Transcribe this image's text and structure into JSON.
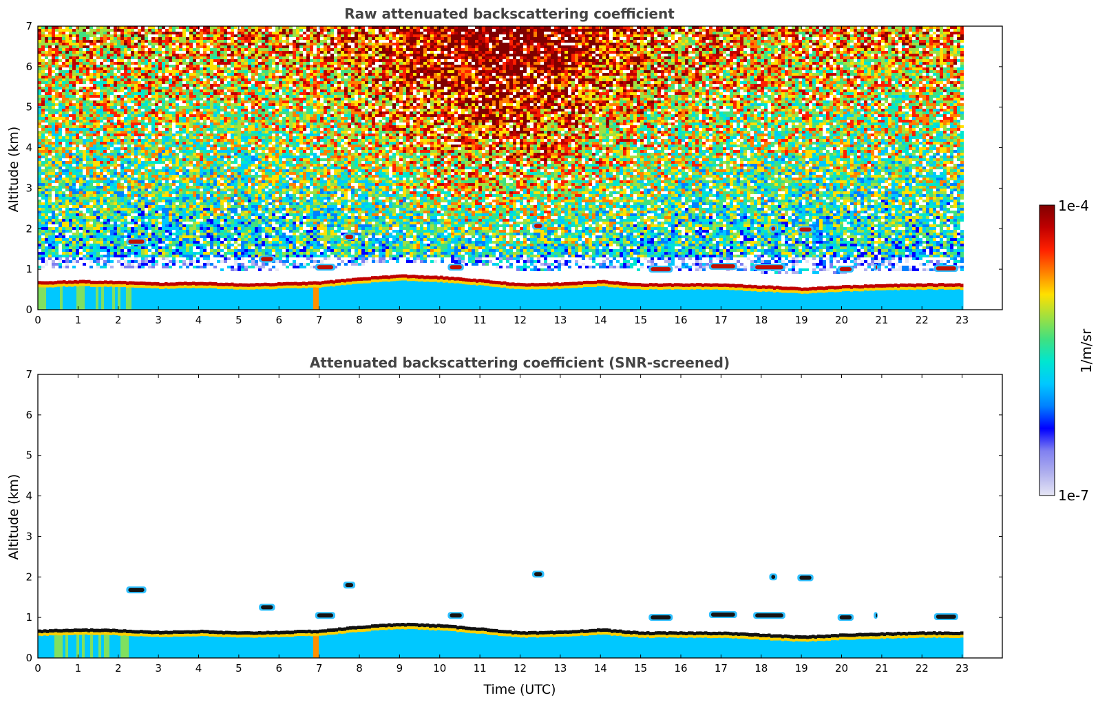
{
  "chart_data": [
    {
      "type": "heatmap",
      "title": "Raw attenuated backscattering coefficient",
      "ylabel": "Altitude (km)",
      "xlabel": "",
      "xlim": [
        0,
        24
      ],
      "ylim": [
        0,
        7
      ],
      "x_ticks": [
        0,
        1,
        2,
        3,
        4,
        5,
        6,
        7,
        8,
        9,
        10,
        11,
        12,
        13,
        14,
        15,
        16,
        17,
        18,
        19,
        20,
        21,
        22,
        23
      ],
      "y_ticks": [
        0,
        1,
        2,
        3,
        4,
        5,
        6,
        7
      ],
      "data_extent_hours": [
        0,
        23
      ],
      "boundary_layer_top_km": [
        [
          0,
          0.65
        ],
        [
          1,
          0.68
        ],
        [
          2,
          0.66
        ],
        [
          3,
          0.62
        ],
        [
          4,
          0.64
        ],
        [
          5,
          0.6
        ],
        [
          6,
          0.62
        ],
        [
          7,
          0.65
        ],
        [
          8,
          0.75
        ],
        [
          9,
          0.82
        ],
        [
          10,
          0.78
        ],
        [
          11,
          0.7
        ],
        [
          12,
          0.6
        ],
        [
          13,
          0.62
        ],
        [
          14,
          0.68
        ],
        [
          15,
          0.6
        ],
        [
          16,
          0.6
        ],
        [
          17,
          0.6
        ],
        [
          18,
          0.55
        ],
        [
          19,
          0.5
        ],
        [
          20,
          0.55
        ],
        [
          21,
          0.58
        ],
        [
          22,
          0.6
        ],
        [
          23,
          0.6
        ]
      ],
      "elevated_layers": [
        {
          "t": [
            2.2,
            2.7
          ],
          "alt_km": 1.68
        },
        {
          "t": [
            5.5,
            5.9
          ],
          "alt_km": 1.25
        },
        {
          "t": [
            6.9,
            7.4
          ],
          "alt_km": 1.05
        },
        {
          "t": [
            7.6,
            7.9
          ],
          "alt_km": 1.8
        },
        {
          "t": [
            10.2,
            10.6
          ],
          "alt_km": 1.05
        },
        {
          "t": [
            12.3,
            12.6
          ],
          "alt_km": 2.07
        },
        {
          "t": [
            15.2,
            15.8
          ],
          "alt_km": 1.0
        },
        {
          "t": [
            16.7,
            17.4
          ],
          "alt_km": 1.07
        },
        {
          "t": [
            17.8,
            18.6
          ],
          "alt_km": 1.05
        },
        {
          "t": [
            18.2,
            18.4
          ],
          "alt_km": 2.0
        },
        {
          "t": [
            18.9,
            19.3
          ],
          "alt_km": 1.98
        },
        {
          "t": [
            19.9,
            20.3
          ],
          "alt_km": 1.0
        },
        {
          "t": [
            20.8,
            20.9
          ],
          "alt_km": 1.05
        },
        {
          "t": [
            22.3,
            22.9
          ],
          "alt_km": 1.02
        }
      ]
    },
    {
      "type": "heatmap",
      "title": "Attenuated backscattering coefficient (SNR-screened)",
      "ylabel": "Altitude (km)",
      "xlabel": "Time (UTC)",
      "xlim": [
        0,
        24
      ],
      "ylim": [
        0,
        7
      ],
      "x_ticks": [
        0,
        1,
        2,
        3,
        4,
        5,
        6,
        7,
        8,
        9,
        10,
        11,
        12,
        13,
        14,
        15,
        16,
        17,
        18,
        19,
        20,
        21,
        22,
        23
      ],
      "y_ticks": [
        0,
        1,
        2,
        3,
        4,
        5,
        6,
        7
      ],
      "data_extent_hours": [
        0,
        23
      ]
    }
  ],
  "colorbar": {
    "label": "1/m/sr",
    "max_label": "1e-4",
    "min_label": "1e-7",
    "colormap": "jet",
    "colors": [
      "#e6e6f5",
      "#b0b0ee",
      "#8080f0",
      "#0000ff",
      "#0080ff",
      "#00c8ff",
      "#00e6d0",
      "#40e080",
      "#a0e040",
      "#ffe000",
      "#ff8000",
      "#ff2000",
      "#c00000",
      "#800000"
    ]
  }
}
